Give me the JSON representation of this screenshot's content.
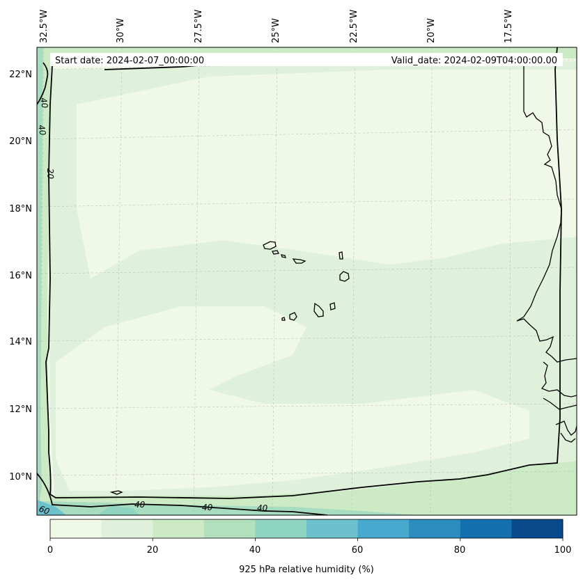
{
  "header": {
    "start_date": "Start date: 2024-02-07_00:00:00",
    "valid_date": "Valid_date: 2024-02-09T04:00:00.00"
  },
  "axes": {
    "longitude_labels": [
      "32.5°W",
      "30°W",
      "27.5°W",
      "25°W",
      "22.5°W",
      "20°W",
      "17.5°W"
    ],
    "latitude_labels": [
      "22°N",
      "20°N",
      "18°N",
      "16°N",
      "14°N",
      "12°N",
      "10°N"
    ]
  },
  "contour_labels": [
    "40",
    "40",
    "20",
    "40",
    "40",
    "40",
    "60"
  ],
  "colorbar": {
    "label": "925 hPa relative humidity (%)",
    "ticks": [
      "0",
      "20",
      "40",
      "60",
      "80",
      "100"
    ],
    "colors": [
      "#f0f9e8",
      "#dff1db",
      "#ccebc5",
      "#b3e0bc",
      "#8fd3c1",
      "#6cc1cc",
      "#48a9cf",
      "#2b8cbe",
      "#1570b0",
      "#084a8c"
    ]
  },
  "colors": {
    "background_field": "#f0f9e8",
    "light_field": "#dff1db",
    "mid_field": "#ccebc5",
    "edge_field": "#a8dcc0",
    "corner_field": "#6cc1cc",
    "gridline": "#bbbbbb"
  }
}
